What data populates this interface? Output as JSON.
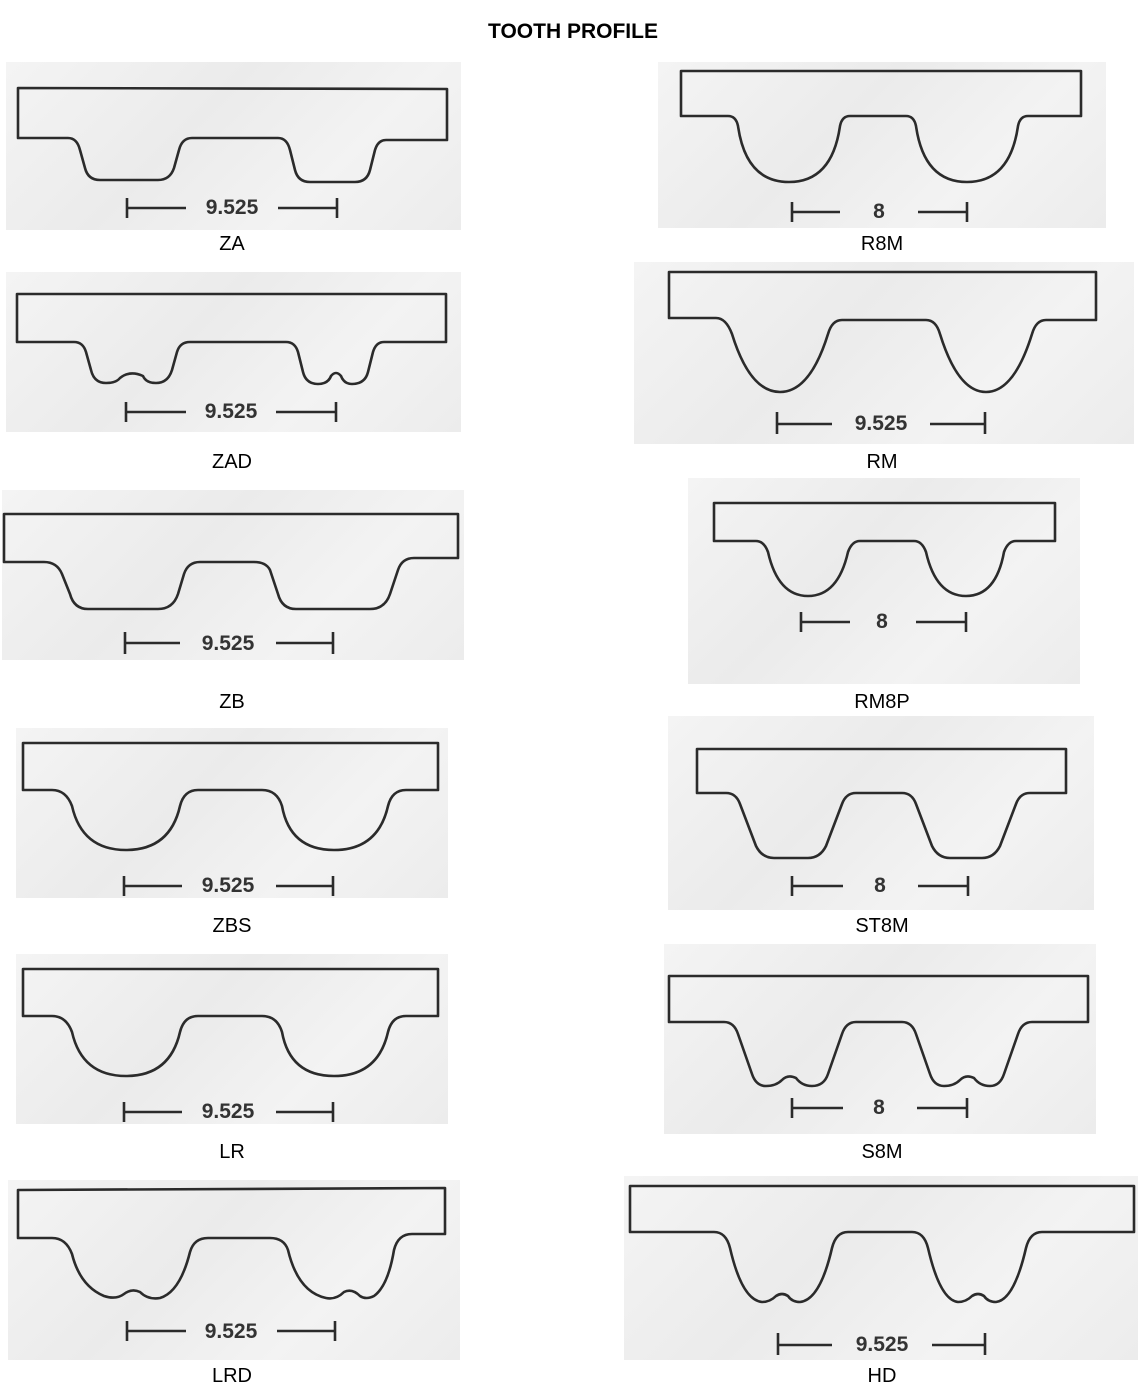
{
  "title": "TOOTH PROFILE",
  "profiles": {
    "za": {
      "name": "ZA",
      "pitch": "9.525"
    },
    "zad": {
      "name": "ZAD",
      "pitch": "9.525"
    },
    "zb": {
      "name": "ZB",
      "pitch": "9.525"
    },
    "zbs": {
      "name": "ZBS",
      "pitch": "9.525"
    },
    "lr": {
      "name": "LR",
      "pitch": "9.525"
    },
    "lrd": {
      "name": "LRD",
      "pitch": "9.525"
    },
    "r8m": {
      "name": "R8M",
      "pitch": "8"
    },
    "rm": {
      "name": "RM",
      "pitch": "9.525"
    },
    "rm8p": {
      "name": "RM8P",
      "pitch": "8"
    },
    "st8m": {
      "name": "ST8M",
      "pitch": "8"
    },
    "s8m": {
      "name": "S8M",
      "pitch": "8"
    },
    "hd": {
      "name": "HD",
      "pitch": "9.525"
    }
  }
}
